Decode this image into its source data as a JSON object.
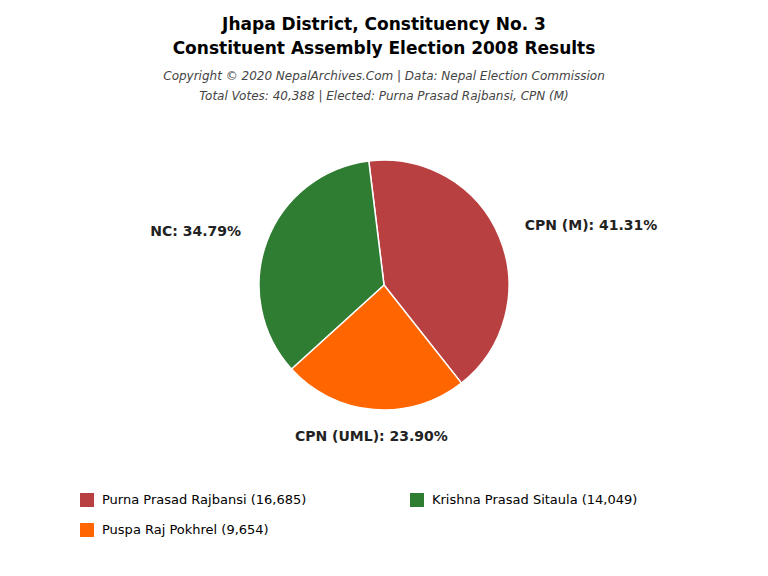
{
  "chart_data": {
    "type": "pie",
    "title": "Jhapa District, Constituency No. 3",
    "subtitle": "Constituent Assembly Election 2008 Results",
    "annotations": [
      "Copyright © 2020 NepalArchives.Com | Data: Nepal Election Commission",
      "Total Votes: 40,388 | Elected: Purna Prasad Rajbansi, CPN (M)"
    ],
    "values": [
      41.31,
      23.9,
      34.79
    ],
    "value_labels": [
      "CPN (M): 41.31%",
      "CPN (UML): 23.90%",
      "NC: 34.79%"
    ],
    "colors": [
      "#B94040",
      "#FF6600",
      "#2E7D32"
    ],
    "data_labels": true,
    "legend": "bottom",
    "legend_entries": [
      {
        "label": "Purna Prasad Rajbansi (16,685)",
        "color": "#B94040"
      },
      {
        "label": "Krishna Prasad Sitaula (14,049)",
        "color": "#2E7D32"
      },
      {
        "label": "Puspa Raj Pokhrel (9,654)",
        "color": "#FF6600"
      }
    ]
  }
}
